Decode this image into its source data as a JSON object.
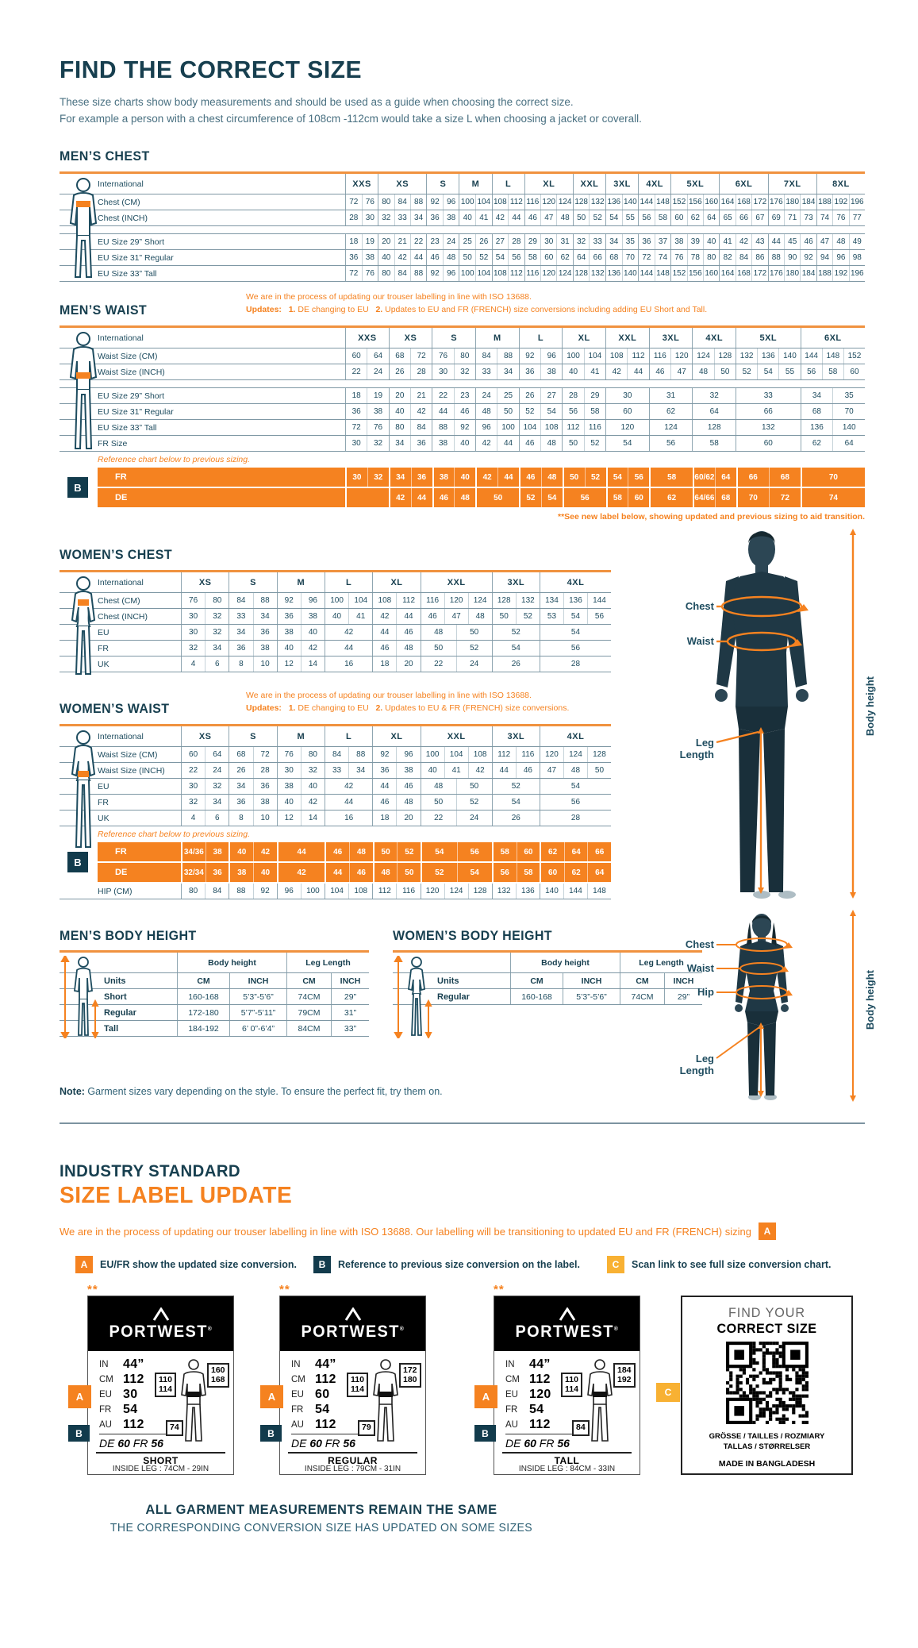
{
  "page": {
    "title": "FIND THE CORRECT SIZE",
    "subtitle1": "These size charts show body measurements and should be used as a guide when choosing the correct size.",
    "subtitle2": "For example a person with a chest circumference of 108cm -112cm would take a size L when choosing a jacket or coverall."
  },
  "colors": {
    "navy": "#173F4F",
    "orange": "#F58220",
    "amber": "#F8B133",
    "badge_navy": "#123B4C"
  },
  "annotations": {
    "chest": "Chest",
    "waist": "Waist",
    "hip": "Hip",
    "leg_length": "Leg Length",
    "body_height": "Body height"
  },
  "mens_chest": {
    "heading": "MEN’S CHEST",
    "label_header": "International",
    "sizes": [
      "XXS",
      "XS",
      "S",
      "M",
      "L",
      "XL",
      "XXL",
      "3XL",
      "4XL",
      "5XL",
      "6XL",
      "7XL",
      "8XL"
    ],
    "rows": [
      {
        "label": "Chest (CM)",
        "cells": [
          "72 76",
          "80 84 88",
          "92 96",
          "100 104",
          "108 112",
          "116 120 124",
          "128 132",
          "136 140",
          "144 148",
          "152 156 160",
          "164 168 172",
          "176 180 184",
          "188 192 196"
        ]
      },
      {
        "label": "Chest (INCH)",
        "cells": [
          "28 30",
          "32 33 34",
          "36 38",
          "40 41",
          "42 44",
          "46 47 48",
          "50 52",
          "54 55",
          "56 58",
          "60 62 64",
          "65 66 67",
          "69 71 73",
          "74 76 77"
        ]
      },
      {
        "spacer": true
      },
      {
        "label": "EU Size 29” Short",
        "cells": [
          "18 19",
          "20 21 22",
          "23 24",
          "25 26",
          "27 28",
          "29 30 31",
          "32 33",
          "34 35",
          "36 37",
          "38 39 40",
          "41 42 43",
          "44 45 46",
          "47 48 49"
        ]
      },
      {
        "label": "EU Size 31” Regular",
        "cells": [
          "36 38",
          "40 42 44",
          "46 48",
          "50 52",
          "54 56",
          "58 60 62",
          "64 66",
          "68 70",
          "72 74",
          "76 78 80",
          "82 84 86",
          "88 90 92",
          "94 96 98"
        ]
      },
      {
        "label": "EU Size 33” Tall",
        "cells": [
          "72 76",
          "80 84 88",
          "92 96",
          "100 104",
          "108 112",
          "116 120 124",
          "128 132",
          "136 140",
          "144 148",
          "152 156 160",
          "164 168 172",
          "176 180 184",
          "188 192 196"
        ]
      }
    ]
  },
  "mens_waist": {
    "heading": "MEN’S WAIST",
    "note_line1": "We are in the process of updating our trouser labelling in line with ISO 13688.",
    "note_updates": "Updates:",
    "note_1n": "1.",
    "note_1": " DE changing to EU",
    "note_2n": "2.",
    "note_2": " Updates to EU and FR (FRENCH) size conversions including adding EU Short and Tall.",
    "label_header": "International",
    "sizes": [
      "XXS",
      "XS",
      "S",
      "M",
      "L",
      "XL",
      "XXL",
      "3XL",
      "4XL",
      "5XL",
      "6XL"
    ],
    "rows": [
      {
        "label": "Waist Size (CM)",
        "cells": [
          "60 64",
          "68 72",
          "76 80",
          "84 88",
          "92 96",
          "100 104",
          "108 112",
          "116 120",
          "124 128",
          "132 136 140",
          "144 148 152"
        ]
      },
      {
        "label": "Waist Size (INCH)",
        "cells": [
          "22 24",
          "26 28",
          "30 32",
          "33 34",
          "36 38",
          "40 41",
          "42 44",
          "46 47",
          "48 50",
          "52 54 55",
          "56 58 60"
        ]
      },
      {
        "spacer": true
      },
      {
        "label": "EU Size 29” Short",
        "cells": [
          "18 19",
          "20 21",
          "22 23",
          "24 25",
          "26 27",
          "28 29",
          "30",
          "31",
          "32",
          "33",
          "34 35"
        ]
      },
      {
        "label": "EU Size 31” Regular",
        "cells": [
          "36 38",
          "40 42",
          "44 46",
          "48 50",
          "52 54",
          "56 58",
          "60",
          "62",
          "64",
          "66",
          "68 70"
        ]
      },
      {
        "label": "EU Size 33” Tall",
        "cells": [
          "72 76",
          "80 84",
          "88 92",
          "96 100",
          "104 108",
          "112 116",
          "120",
          "124",
          "128",
          "132",
          "136 140"
        ]
      },
      {
        "label": "FR Size",
        "cells": [
          "30 32",
          "34 36",
          "38 40",
          "42 44",
          "46 48",
          "50 52",
          "54",
          "56",
          "58",
          "60",
          "62 64"
        ]
      }
    ],
    "reference_note": "Reference chart below to previous sizing.",
    "b_badge": "B",
    "b_rows": [
      {
        "label": "FR",
        "cells": [
          "30 32",
          "34 36",
          "38 40",
          "42 44",
          "46 48",
          "50 52",
          "54 56",
          "58",
          "60/62 64",
          "66 68",
          "70"
        ]
      },
      {
        "label": "DE",
        "cells": [
          "",
          "42 44",
          "46 48",
          "50",
          "52 54",
          "56",
          "58 60",
          "62",
          "64/66 68",
          "70 72",
          "74"
        ]
      }
    ],
    "footnote": "**See new label below, showing updated and previous sizing to aid transition."
  },
  "womens_chest": {
    "heading": "WOMEN’S CHEST",
    "label_header": "International",
    "sizes": [
      "XS",
      "S",
      "M",
      "L",
      "XL",
      "XXL",
      "3XL",
      "4XL"
    ],
    "rows": [
      {
        "label": "Chest (CM)",
        "cells": [
          "76 80",
          "84 88",
          "92 96",
          "100 104",
          "108 112",
          "116 120 124",
          "128 132",
          "134 136 144"
        ]
      },
      {
        "label": "Chest (INCH)",
        "cells": [
          "30 32",
          "33 34",
          "36 38",
          "40 41",
          "42 44",
          "46 47 48",
          "50 52",
          "53 54 56"
        ]
      },
      {
        "label": "EU",
        "cells": [
          "30 32",
          "34 36",
          "38 40",
          "42",
          "44 46",
          "48 50",
          "52",
          "54"
        ]
      },
      {
        "label": "FR",
        "cells": [
          "32 34",
          "36 38",
          "40 42",
          "44",
          "46 48",
          "50 52",
          "54",
          "56"
        ]
      },
      {
        "label": "UK",
        "cells": [
          "4 6",
          "8 10",
          "12 14",
          "16",
          "18 20",
          "22 24",
          "26",
          "28"
        ]
      }
    ]
  },
  "womens_waist": {
    "heading": "WOMEN’S WAIST",
    "note_line1": "We are in the process of updating our trouser labelling in line with ISO 13688.",
    "note_updates": "Updates:",
    "note_1n": "1.",
    "note_1": " DE changing to EU",
    "note_2n": "2.",
    "note_2": " Updates to EU & FR (FRENCH) size conversions.",
    "label_header": "International",
    "sizes": [
      "XS",
      "S",
      "M",
      "L",
      "XL",
      "XXL",
      "3XL",
      "4XL"
    ],
    "rows": [
      {
        "label": "Waist Size (CM)",
        "cells": [
          "60 64",
          "68 72",
          "76 80",
          "84 88",
          "92 96",
          "100 104 108",
          "112 116",
          "120 124 128"
        ]
      },
      {
        "label": "Waist Size (INCH)",
        "cells": [
          "22 24",
          "26 28",
          "30 32",
          "33 34",
          "36 38",
          "40 41 42",
          "44 46",
          "47 48 50"
        ]
      },
      {
        "label": "EU",
        "cells": [
          "30 32",
          "34 36",
          "38 40",
          "42",
          "44 46",
          "48 50",
          "52",
          "54"
        ]
      },
      {
        "label": "FR",
        "cells": [
          "32 34",
          "36 38",
          "40 42",
          "44",
          "46 48",
          "50 52",
          "54",
          "56"
        ]
      },
      {
        "label": "UK",
        "cells": [
          "4 6",
          "8 10",
          "12 14",
          "16",
          "18 20",
          "22 24",
          "26",
          "28"
        ]
      }
    ],
    "reference_note": "Reference chart below to previous sizing.",
    "b_badge": "B",
    "b_rows": [
      {
        "label": "FR",
        "cells": [
          "34/36 38",
          "40 42",
          "44",
          "46 48",
          "50 52",
          "54 56",
          "58 60",
          "62 64 66"
        ]
      },
      {
        "label": "DE",
        "cells": [
          "32/34 36",
          "38 40",
          "42",
          "44 46",
          "48 50",
          "52 54",
          "56 58",
          "60 62 64"
        ]
      }
    ],
    "after_rows": [
      {
        "label": "HIP (CM)",
        "cells": [
          "80 84",
          "88 92",
          "96 100",
          "104 108",
          "112 116",
          "120 124 128",
          "132 136",
          "140 144 148"
        ]
      }
    ]
  },
  "mens_body_height": {
    "heading": "MEN’S BODY HEIGHT",
    "group1": "Body height",
    "group2": "Leg Length",
    "units_label": "Units",
    "unit_cols": [
      "CM",
      "INCH",
      "CM",
      "INCH"
    ],
    "rows": [
      {
        "label": "Short",
        "cells": [
          "160-168",
          "5’3”-5’6”",
          "74CM",
          "29”"
        ]
      },
      {
        "label": "Regular",
        "cells": [
          "172-180",
          "5’7”-5’11”",
          "79CM",
          "31”"
        ]
      },
      {
        "label": "Tall",
        "cells": [
          "184-192",
          "6’ 0”-6’4”",
          "84CM",
          "33”"
        ]
      }
    ]
  },
  "womens_body_height": {
    "heading": "WOMEN’S BODY HEIGHT",
    "group1": "Body height",
    "group2": "Leg Length",
    "units_label": "Units",
    "unit_cols": [
      "CM",
      "INCH",
      "CM",
      "INCH"
    ],
    "rows": [
      {
        "label": "Regular",
        "cells": [
          "160-168",
          "5’3”-5’6”",
          "74CM",
          "29”"
        ]
      }
    ]
  },
  "note": {
    "bold": "Note:",
    "text": " Garment sizes vary depending on the style. To ensure the perfect fit, try them on."
  },
  "industry": {
    "heading_line1": "INDUSTRY STANDARD",
    "heading_line2": "SIZE LABEL UPDATE",
    "intro": "We are in the process of updating our trouser labelling in line with ISO 13688. Our labelling will be transitioning to updated EU and FR (FRENCH) sizing",
    "badges": {
      "a": "A",
      "b": "B",
      "c": "C"
    },
    "legend": [
      {
        "badge": "A",
        "text": "EU/FR show the updated size conversion."
      },
      {
        "badge": "B",
        "text": "Reference to previous size conversion on the label."
      },
      {
        "badge": "C",
        "text": "Scan link to see full size conversion chart."
      }
    ],
    "stars": "**",
    "brand": "PORTWEST",
    "brand_reg": "®",
    "labels": [
      {
        "fields": [
          [
            "IN",
            "44”"
          ],
          [
            "CM",
            "112"
          ],
          [
            "EU",
            "30"
          ],
          [
            "FR",
            "54"
          ],
          [
            "AU",
            "112"
          ]
        ],
        "prev": [
          [
            "DE",
            "60"
          ],
          [
            "FR",
            "56"
          ]
        ],
        "waist_top": "110",
        "waist_bot": "114",
        "height_top": "160",
        "height_bot": "168",
        "leg": "74",
        "fit": "SHORT",
        "inside_leg": "INSIDE LEG : 74CM - 29IN"
      },
      {
        "fields": [
          [
            "IN",
            "44”"
          ],
          [
            "CM",
            "112"
          ],
          [
            "EU",
            "60"
          ],
          [
            "FR",
            "54"
          ],
          [
            "AU",
            "112"
          ]
        ],
        "prev": [
          [
            "DE",
            "60"
          ],
          [
            "FR",
            "56"
          ]
        ],
        "waist_top": "110",
        "waist_bot": "114",
        "height_top": "172",
        "height_bot": "180",
        "leg": "79",
        "fit": "REGULAR",
        "inside_leg": "INSIDE LEG : 79CM - 31IN"
      },
      {
        "fields": [
          [
            "IN",
            "44”"
          ],
          [
            "CM",
            "112"
          ],
          [
            "EU",
            "120"
          ],
          [
            "FR",
            "54"
          ],
          [
            "AU",
            "112"
          ]
        ],
        "prev": [
          [
            "DE",
            "60"
          ],
          [
            "FR",
            "56"
          ]
        ],
        "waist_top": "110",
        "waist_bot": "114",
        "height_top": "184",
        "height_bot": "192",
        "leg": "84",
        "fit": "TALL",
        "inside_leg": "INSIDE LEG : 84CM - 33IN"
      }
    ],
    "qr_panel": {
      "line1": "FIND YOUR",
      "line2": "CORRECT SIZE",
      "langs1": "GRÖSSE / TAILLES / ROZMIARY",
      "langs2": "TALLAS  / STØRRELSER",
      "made": "MADE IN BANGLADESH"
    },
    "footer1": "ALL GARMENT MEASUREMENTS REMAIN THE SAME",
    "footer2": "THE CORRESPONDING CONVERSION SIZE HAS UPDATED ON SOME SIZES"
  }
}
